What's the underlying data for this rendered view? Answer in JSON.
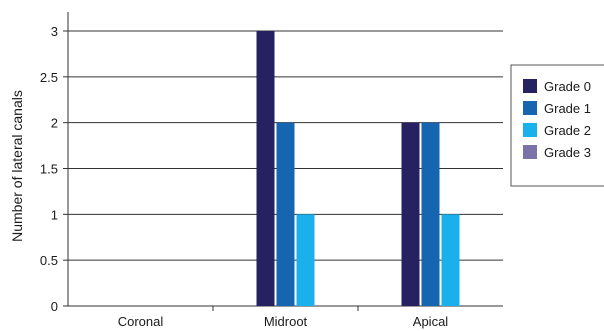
{
  "chart_data": {
    "type": "bar",
    "categories": [
      "Coronal",
      "Midroot",
      "Apical"
    ],
    "series": [
      {
        "name": "Grade 0",
        "color": "#262262",
        "values": [
          0,
          3,
          2
        ]
      },
      {
        "name": "Grade 1",
        "color": "#1565b0",
        "values": [
          0,
          2,
          2
        ]
      },
      {
        "name": "Grade 2",
        "color": "#1ab0ec",
        "values": [
          0,
          1,
          1
        ]
      },
      {
        "name": "Grade 3",
        "color": "#7b73a8",
        "values": [
          0,
          0,
          0
        ]
      }
    ],
    "title": "",
    "xlabel": "",
    "ylabel": "Number of lateral canals",
    "ylim": [
      0,
      3
    ],
    "yticks": [
      "0",
      "0.5",
      "1",
      "1.5",
      "2",
      "2.5",
      "3"
    ],
    "grid": true,
    "legend_position": "right"
  }
}
